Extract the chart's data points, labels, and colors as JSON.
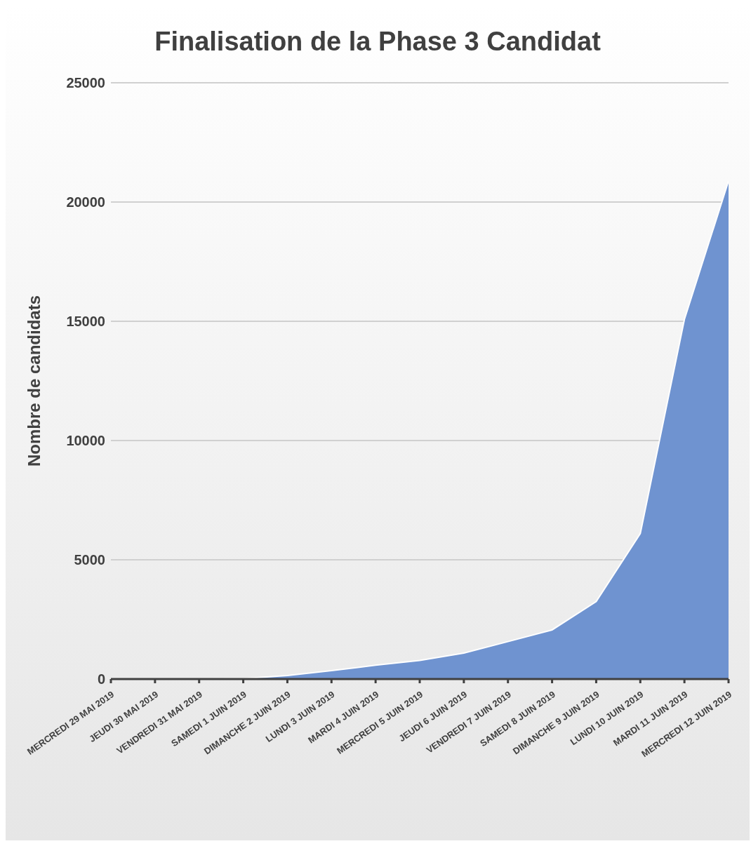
{
  "chart_data": {
    "type": "area",
    "title": "Finalisation de la Phase 3 Candidat",
    "ylabel": "Nombre de candidats",
    "categories": [
      "MERCREDI 29 MAI 2019",
      "JEUDI 30 MAI 2019",
      "VENDREDI 31 MAI 2019",
      "SAMEDI 1 JUIN 2019",
      "DIMANCHE 2 JUIN 2019",
      "LUNDI 3 JUIN 2019",
      "MARDI 4 JUIN 2019",
      "MERCREDI 5 JUIN 2019",
      "JEUDI 6 JUIN 2019",
      "VENDREDI 7 JUIN 2019",
      "SAMEDI 8 JUIN 2019",
      "DIMANCHE 9 JUIN 2019",
      "LUNDI 10 JUIN 2019",
      "MARDI 11 JUIN 2019",
      "MERCREDI 12 JUIN 2019"
    ],
    "values": [
      0,
      0,
      0,
      20,
      150,
      350,
      580,
      780,
      1090,
      1570,
      2060,
      3250,
      6100,
      15080,
      20880
    ],
    "color": "#6f93d0",
    "ylim": [
      0,
      25000
    ],
    "yticks": [
      0,
      5000,
      10000,
      15000,
      20000,
      25000
    ],
    "grid": "y"
  }
}
